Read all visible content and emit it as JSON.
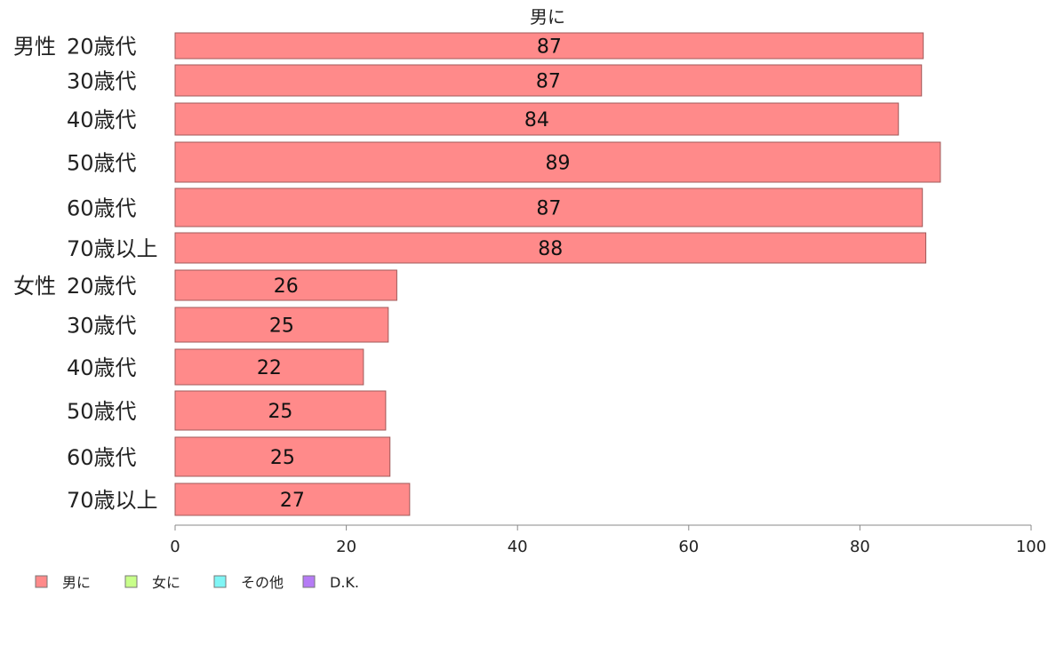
{
  "chart_data": {
    "type": "bar",
    "orientation": "horizontal",
    "series_title": "男に",
    "groups": [
      "男性",
      "女性"
    ],
    "categories": [
      {
        "group": "男性",
        "label": "20歳代"
      },
      {
        "group": "男性",
        "label": "30歳代"
      },
      {
        "group": "男性",
        "label": "40歳代"
      },
      {
        "group": "男性",
        "label": "50歳代"
      },
      {
        "group": "男性",
        "label": "60歳代"
      },
      {
        "group": "男性",
        "label": "70歳以上"
      },
      {
        "group": "女性",
        "label": "20歳代"
      },
      {
        "group": "女性",
        "label": "30歳代"
      },
      {
        "group": "女性",
        "label": "40歳代"
      },
      {
        "group": "女性",
        "label": "50歳代"
      },
      {
        "group": "女性",
        "label": "60歳代"
      },
      {
        "group": "女性",
        "label": "70歳以上"
      }
    ],
    "series": [
      {
        "name": "男に",
        "color": "#ff8a8a",
        "values": [
          87.4,
          87.2,
          84.5,
          89.4,
          87.3,
          87.7,
          25.9,
          24.9,
          22.0,
          24.6,
          25.1,
          27.4
        ]
      }
    ],
    "value_labels": [
      "87",
      "87",
      "84",
      "89",
      "87",
      "88",
      "26",
      "25",
      "22",
      "25",
      "25",
      "27"
    ],
    "xlim": [
      0,
      100
    ],
    "xticks": [
      0,
      20,
      40,
      60,
      80,
      100
    ],
    "legend": {
      "placement": "bottom-left",
      "items": [
        {
          "label": "男に",
          "color": "#ff8a8a"
        },
        {
          "label": "女に",
          "color": "#c8ff8a"
        },
        {
          "label": "その他",
          "color": "#7ff5f5"
        },
        {
          "label": "D.K.",
          "color": "#b57bf5"
        }
      ]
    },
    "grid": false
  }
}
